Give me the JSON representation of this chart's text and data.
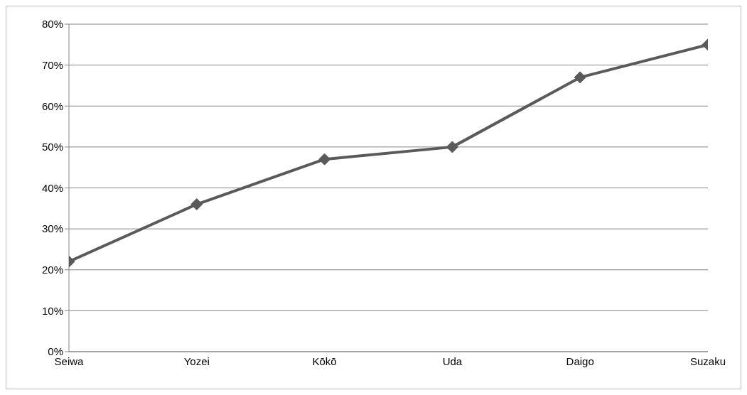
{
  "chart_data": {
    "type": "line",
    "categories": [
      "Seiwa",
      "Yozei",
      "Kōkō",
      "Uda",
      "Daigo",
      "Suzaku"
    ],
    "series": [
      {
        "color": "#5a5a5a",
        "values": [
          22,
          36,
          47,
          50,
          67,
          75
        ]
      }
    ],
    "ylim": [
      0,
      80
    ],
    "yticks": [
      {
        "value": 0,
        "label": "0%"
      },
      {
        "value": 10,
        "label": "10%"
      },
      {
        "value": 20,
        "label": "20%"
      },
      {
        "value": 30,
        "label": "30%"
      },
      {
        "value": 40,
        "label": "40%"
      },
      {
        "value": 50,
        "label": "50%"
      },
      {
        "value": 60,
        "label": "60%"
      },
      {
        "value": 70,
        "label": "70%"
      },
      {
        "value": 80,
        "label": "80%"
      }
    ],
    "grid": "y",
    "legend": false,
    "marker": "diamond",
    "line_style": "solid"
  }
}
